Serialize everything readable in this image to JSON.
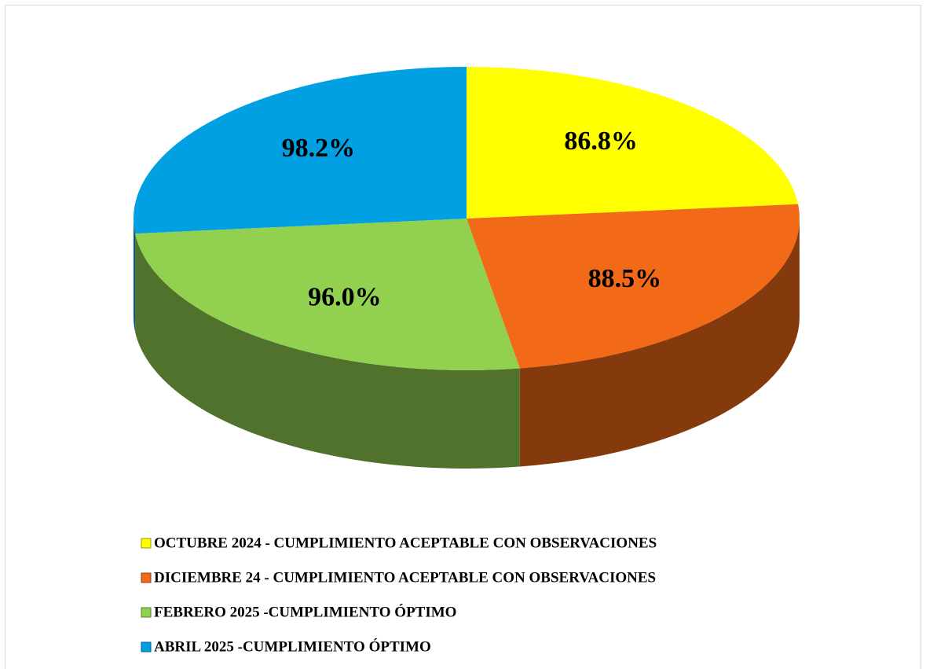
{
  "chart_data": {
    "type": "pie",
    "categories": [
      "OCTUBRE 2024 - CUMPLIMIENTO ACEPTABLE CON OBSERVACIONES",
      "DICIEMBRE 24 - CUMPLIMIENTO ACEPTABLE CON OBSERVACIONES",
      "FEBRERO 2025 -CUMPLIMIENTO ÓPTIMO",
      "ABRIL 2025 -CUMPLIMIENTO ÓPTIMO"
    ],
    "values": [
      86.8,
      88.5,
      96.0,
      98.2
    ],
    "value_labels": [
      "86.8%",
      "88.5%",
      "96.0%",
      "98.2%"
    ],
    "colors": [
      "#ffff00",
      "#f26a17",
      "#92d050",
      "#00a0e3"
    ],
    "legend": "bottom"
  }
}
